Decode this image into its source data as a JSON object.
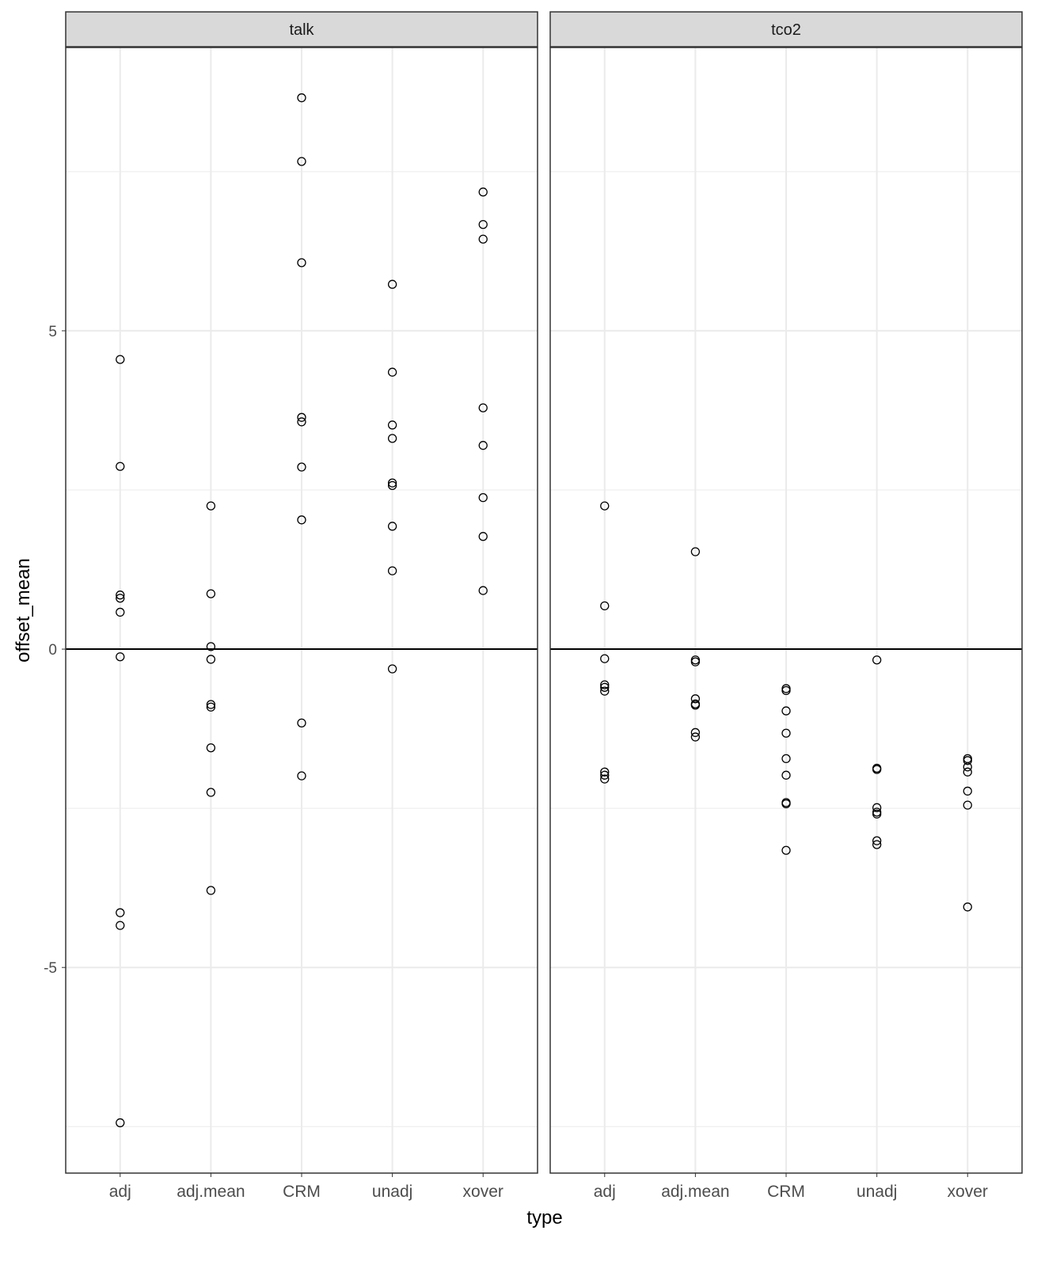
{
  "chart_data": {
    "type": "scatter",
    "xlabel": "type",
    "ylabel": "offset_mean",
    "categories": [
      "adj",
      "adj.mean",
      "CRM",
      "unadj",
      "xover"
    ],
    "ylim": [
      -8.23,
      9.45
    ],
    "yticks": [
      -5,
      0,
      5
    ],
    "ytick_labels": [
      "-5",
      "0",
      "5"
    ],
    "grid": true,
    "reference_line": 0,
    "marker": "open-circle",
    "colors": {
      "points": "#000000",
      "strip": "#d9d9d9",
      "grid": "#ebebeb"
    },
    "panels": [
      {
        "strip": "talk",
        "points": {
          "adj": [
            4.55,
            2.87,
            0.85,
            0.8,
            0.58,
            -0.12,
            -4.14,
            -4.34,
            -7.44
          ],
          "adj.mean": [
            2.25,
            0.87,
            0.04,
            -0.16,
            -0.87,
            -0.91,
            -1.55,
            -2.25,
            -3.79
          ],
          "CRM": [
            8.66,
            7.66,
            6.07,
            3.64,
            3.57,
            2.86,
            2.03,
            -1.16,
            -1.99
          ],
          "unadj": [
            5.73,
            4.35,
            3.52,
            3.31,
            2.61,
            2.57,
            1.93,
            1.23,
            -0.31
          ],
          "xover": [
            7.18,
            6.67,
            6.44,
            3.79,
            3.2,
            2.38,
            1.77,
            0.92
          ]
        }
      },
      {
        "strip": "tco2",
        "points": {
          "adj": [
            2.25,
            0.68,
            -0.15,
            -0.56,
            -0.6,
            -0.66,
            -1.93,
            -1.98,
            -2.04
          ],
          "adj.mean": [
            1.53,
            -0.17,
            -0.2,
            -0.78,
            -0.86,
            -0.88,
            -1.31,
            -1.38
          ],
          "CRM": [
            -0.62,
            -0.65,
            -0.97,
            -1.32,
            -1.72,
            -1.98,
            -2.41,
            -2.43,
            -3.16
          ],
          "unadj": [
            -0.17,
            -1.87,
            -1.89,
            -2.49,
            -2.56,
            -2.59,
            -3.01,
            -3.07
          ],
          "xover": [
            -1.72,
            -1.75,
            -1.85,
            -1.93,
            -2.23,
            -2.45,
            -4.05
          ]
        }
      }
    ]
  }
}
